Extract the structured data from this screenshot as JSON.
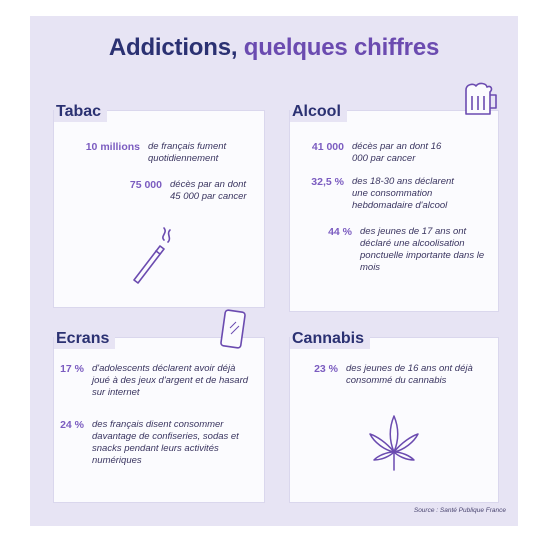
{
  "title": {
    "part1": "Addictions,",
    "part2": "quelques chiffres"
  },
  "tabac": {
    "title": "Tabac",
    "stats": [
      {
        "value": "10 millions",
        "text": "de français fument quotidiennement"
      },
      {
        "value": "75 000",
        "text": "décès par an dont 45 000 par cancer"
      }
    ],
    "icon": "cigarette-icon"
  },
  "alcool": {
    "title": "Alcool",
    "stats": [
      {
        "value": "41 000",
        "text": "décès par an dont 16 000 par cancer"
      },
      {
        "value": "32,5 %",
        "text": "des 18-30 ans déclarent une consommation hebdomadaire d'alcool"
      },
      {
        "value": "44 %",
        "text": "des jeunes de 17 ans ont déclaré une alcoolisation ponctuelle importante dans le mois"
      }
    ],
    "icon": "beer-mug-icon"
  },
  "ecrans": {
    "title": "Ecrans",
    "stats": [
      {
        "value": "17 %",
        "text": "d'adolescents déclarent avoir déjà joué à des jeux d'argent et de hasard sur internet"
      },
      {
        "value": "24 %",
        "text": "des français disent consommer davantage de confiseries, sodas et snacks pendant leurs activités numériques"
      }
    ],
    "icon": "smartphone-icon"
  },
  "cannabis": {
    "title": "Cannabis",
    "stats": [
      {
        "value": "23 %",
        "text": "des jeunes de 16 ans ont déjà consommé du cannabis"
      }
    ],
    "icon": "cannabis-leaf-icon"
  },
  "source": "Source : Santé Publique France",
  "colors": {
    "background": "#e7e4f4",
    "card": "#fbfbfe",
    "title_dark": "#2b3172",
    "accent_purple": "#7b5cc0"
  }
}
